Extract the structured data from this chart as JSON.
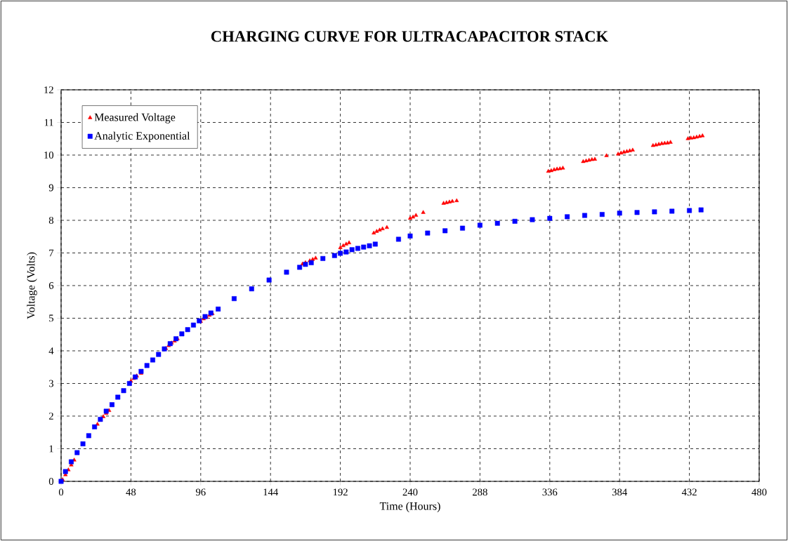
{
  "chart_data": {
    "type": "scatter",
    "title": "CHARGING CURVE FOR ULTRACAPACITOR STACK",
    "xlabel": "Time (Hours)",
    "ylabel": "Voltage (Volts)",
    "xlim": [
      0,
      480
    ],
    "ylim": [
      0,
      12
    ],
    "xticks": [
      0,
      48,
      96,
      144,
      192,
      240,
      288,
      336,
      384,
      432,
      480
    ],
    "yticks": [
      0,
      1,
      2,
      3,
      4,
      5,
      6,
      7,
      8,
      9,
      10,
      11,
      12
    ],
    "grid": true,
    "legend": "top left",
    "series": [
      {
        "name": "Measured Voltage",
        "color": "#ff0000",
        "marker": "triangle",
        "x": [
          1,
          3,
          5,
          7,
          9,
          23,
          25,
          27,
          29,
          31,
          33,
          48,
          50,
          52,
          55,
          72,
          74,
          76,
          78,
          80,
          96,
          98,
          100,
          102,
          104,
          166,
          168,
          171,
          173,
          175,
          192,
          194,
          196,
          198,
          215,
          217,
          219,
          221,
          224,
          240,
          242,
          244,
          249,
          263,
          265,
          267,
          269,
          272,
          335,
          337,
          339,
          341,
          343,
          345,
          359,
          361,
          363,
          365,
          367,
          375,
          383,
          385,
          387,
          389,
          391,
          393,
          407,
          409,
          411,
          413,
          415,
          417,
          419,
          431,
          433,
          435,
          437,
          439,
          441
        ],
        "values": [
          0.05,
          0.2,
          0.35,
          0.5,
          0.65,
          null,
          1.75,
          1.88,
          1.98,
          2.08,
          2.17,
          3.07,
          3.15,
          3.23,
          3.31,
          4.07,
          4.16,
          4.24,
          4.3,
          4.37,
          4.9,
          4.98,
          5.03,
          5.09,
          5.14,
          6.66,
          6.7,
          6.76,
          6.8,
          6.84,
          7.16,
          7.22,
          7.27,
          7.31,
          7.61,
          7.66,
          7.7,
          7.74,
          7.78,
          8.06,
          8.1,
          8.15,
          8.24,
          8.52,
          8.54,
          8.56,
          8.58,
          8.6,
          9.5,
          9.52,
          9.55,
          9.57,
          9.58,
          9.6,
          9.8,
          9.82,
          9.84,
          9.86,
          9.87,
          9.98,
          10.03,
          10.06,
          10.09,
          10.11,
          10.13,
          10.15,
          10.29,
          10.31,
          10.33,
          10.35,
          10.36,
          10.37,
          10.39,
          10.5,
          10.52,
          10.53,
          10.55,
          10.57,
          10.59
        ]
      },
      {
        "name": "Analytic Exponential",
        "color": "#0000ff",
        "marker": "square",
        "x": [
          0,
          3,
          7,
          11,
          15,
          19,
          23,
          27,
          31,
          35,
          39,
          43,
          47,
          51,
          55,
          59,
          63,
          67,
          71,
          75,
          79,
          83,
          87,
          91,
          95,
          99,
          103,
          108,
          119,
          131,
          143,
          155,
          164,
          168,
          172,
          180,
          188,
          192,
          196,
          200,
          204,
          208,
          212,
          216,
          232,
          240,
          252,
          264,
          276,
          288,
          300,
          312,
          324,
          336,
          348,
          360,
          372,
          384,
          396,
          408,
          420,
          432,
          440
        ],
        "values": [
          0,
          0.3,
          0.6,
          0.88,
          1.15,
          1.4,
          1.67,
          1.9,
          2.15,
          2.35,
          2.58,
          2.78,
          3.0,
          3.2,
          3.37,
          3.55,
          3.72,
          3.89,
          4.06,
          4.22,
          4.37,
          4.52,
          4.65,
          4.79,
          4.92,
          5.05,
          5.16,
          5.28,
          5.6,
          5.9,
          6.17,
          6.41,
          6.56,
          6.65,
          6.7,
          6.83,
          6.92,
          6.99,
          7.03,
          7.1,
          7.14,
          7.18,
          7.22,
          7.27,
          7.42,
          7.52,
          7.61,
          7.68,
          7.76,
          7.85,
          7.91,
          7.97,
          8.02,
          8.06,
          8.11,
          8.15,
          8.18,
          8.22,
          8.24,
          8.26,
          8.28,
          8.3,
          8.32
        ]
      }
    ]
  }
}
